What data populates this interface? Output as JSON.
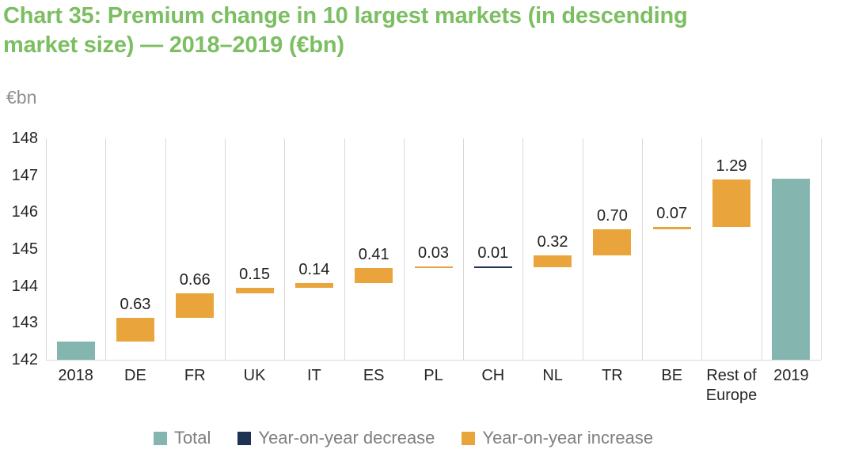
{
  "title_lines": [
    "Chart 35: Premium change in 10 largest markets (in descending",
    "market size) — 2018–2019 (€bn)"
  ],
  "unit_label": "€bn",
  "colors": {
    "title_green": "#7cbe62",
    "total": "#85b5af",
    "increase": "#e9a53c",
    "decrease": "#1e3354",
    "gridline": "#d9d9d9",
    "axis_text": "#252525",
    "value_text": "#1f1f1f",
    "legend_text": "#7f7f7f",
    "unit_text": "#8f8f8f"
  },
  "legend": {
    "items": [
      {
        "label": "Total",
        "color_key": "total"
      },
      {
        "label": "Year-on-year decrease",
        "color_key": "decrease"
      },
      {
        "label": "Year-on-year increase",
        "color_key": "increase"
      }
    ]
  },
  "chart_data": {
    "type": "waterfall",
    "title": "Chart 35: Premium change in 10 largest markets (in descending market size) — 2018–2019 (€bn)",
    "ylabel": "€bn",
    "ylim": [
      142,
      148
    ],
    "yticks": [
      148,
      147,
      146,
      145,
      144,
      143,
      142
    ],
    "grid": "vertical-only",
    "legend_position": "bottom",
    "categories": [
      "2018",
      "DE",
      "FR",
      "UK",
      "IT",
      "ES",
      "PL",
      "CH",
      "NL",
      "TR",
      "BE",
      "Rest of\nEurope",
      "2019"
    ],
    "bars": [
      {
        "category": "2018",
        "type": "total",
        "value": 142.5,
        "label": ""
      },
      {
        "category": "DE",
        "type": "increase",
        "value": 0.63,
        "label": "0.63"
      },
      {
        "category": "FR",
        "type": "increase",
        "value": 0.66,
        "label": "0.66"
      },
      {
        "category": "UK",
        "type": "increase",
        "value": 0.15,
        "label": "0.15"
      },
      {
        "category": "IT",
        "type": "increase",
        "value": 0.14,
        "label": "0.14"
      },
      {
        "category": "ES",
        "type": "increase",
        "value": 0.41,
        "label": "0.41"
      },
      {
        "category": "PL",
        "type": "increase",
        "value": 0.03,
        "label": "0.03"
      },
      {
        "category": "CH",
        "type": "decrease",
        "value": -0.01,
        "label": "0.01"
      },
      {
        "category": "NL",
        "type": "increase",
        "value": 0.32,
        "label": "0.32"
      },
      {
        "category": "TR",
        "type": "increase",
        "value": 0.7,
        "label": "0.70"
      },
      {
        "category": "BE",
        "type": "increase",
        "value": 0.07,
        "label": "0.07"
      },
      {
        "category": "Rest of\nEurope",
        "type": "increase",
        "value": 1.29,
        "label": "1.29"
      },
      {
        "category": "2019",
        "type": "total",
        "value": 146.9,
        "label": ""
      }
    ]
  }
}
